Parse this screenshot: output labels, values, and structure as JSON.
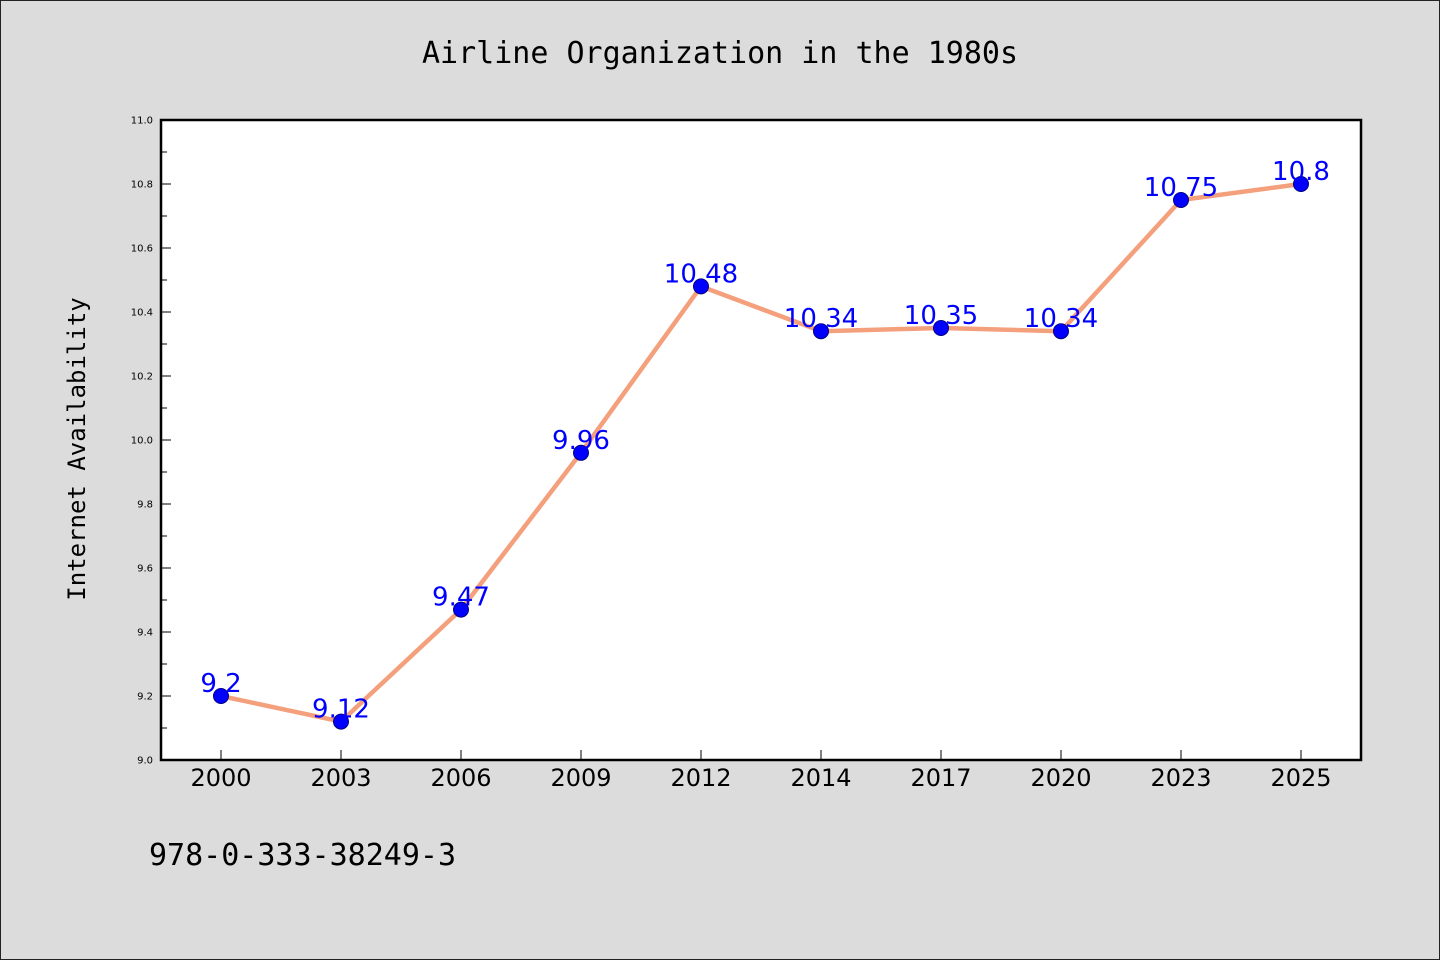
{
  "chart_data": {
    "type": "line",
    "title": "Airline Organization in the 1980s",
    "xlabel": "",
    "ylabel": "Internet Availability",
    "categories": [
      "2000",
      "2003",
      "2006",
      "2009",
      "2012",
      "2014",
      "2017",
      "2020",
      "2023",
      "2025"
    ],
    "values": [
      9.2,
      9.12,
      9.47,
      9.96,
      10.48,
      10.34,
      10.35,
      10.34,
      10.75,
      10.8
    ],
    "data_labels": [
      "9.2",
      "9.12",
      "9.47",
      "9.96",
      "10.48",
      "10.34",
      "10.35",
      "10.34",
      "10.75",
      "10.8"
    ],
    "ylim": [
      9.0,
      11.0
    ],
    "yticks": [
      "9.0",
      "9.2",
      "9.4",
      "9.6",
      "9.8",
      "10.0",
      "10.2",
      "10.4",
      "10.6",
      "10.8",
      "11.0"
    ],
    "grid": false,
    "legend": "none",
    "colors": {
      "line": "#f4a07c",
      "marker": "#0000ff",
      "marker_edge": "#000080",
      "data_label": "#0000ff",
      "plot_background": "#ffffff",
      "figure_background": "#dcdcdc"
    }
  },
  "footer": {
    "isbn": "978-0-333-38249-3"
  }
}
